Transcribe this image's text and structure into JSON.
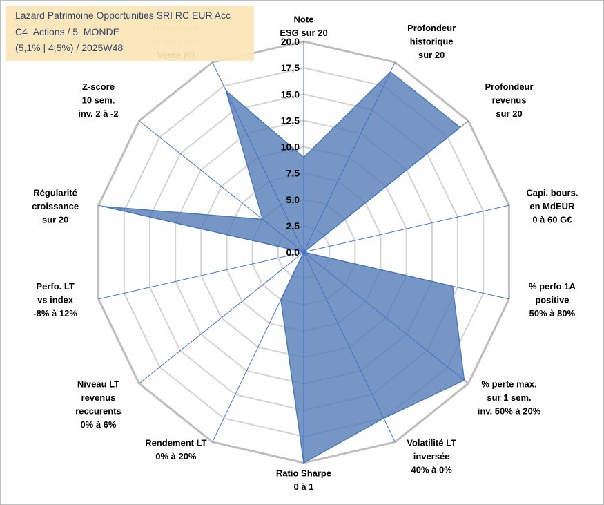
{
  "title": {
    "line1": "Lazard Patrimoine Opportunities SRI RC EUR Acc",
    "line2": "C4_Actions / 5_MONDE",
    "line3": "(5,1% | 4,5%) / 2025W48"
  },
  "colors": {
    "fill": "#4f7ab5",
    "spoke": "#4472c4",
    "ring": "#c8c8c8",
    "title_bg": "#fbe5b6",
    "title_text": "#1f3864",
    "faded_label": "#bfbfbf"
  },
  "chart_data": {
    "type": "radar",
    "ylim": [
      0,
      20
    ],
    "tick_labels": [
      "0,0",
      "2,5",
      "5,0",
      "7,5",
      "10,0",
      "12,5",
      "15,0",
      "17,5",
      "20,0"
    ],
    "categories": [
      [
        "Note",
        "ESG sur 20"
      ],
      [
        "Profondeur",
        "historique",
        "sur 20"
      ],
      [
        "Profondeur",
        "revenus",
        "sur 20"
      ],
      [
        "Capi. bours.",
        "en MdEUR",
        "0 à 60 G€"
      ],
      [
        "% perfo 1A",
        "positive",
        "50% à 80%"
      ],
      [
        "% perte max.",
        "sur 1 sem.",
        "inv. 50% à 20%"
      ],
      [
        "Volatilité LT",
        "inversée",
        "40% à 0%"
      ],
      [
        "Ratio Sharpe",
        "0 à 1"
      ],
      [
        "Rendement LT",
        "0% à 20%"
      ],
      [
        "Niveau LT",
        "revenus",
        "reccurents",
        "0% à 6%"
      ],
      [
        "Perfo. LT",
        "vs index",
        "-8% à 12%"
      ],
      [
        "Régularité",
        "croissance",
        "sur 20"
      ],
      [
        "Z-score",
        "10 sem.",
        "inv. 2 à -2"
      ],
      [
        "Momentum",
        "Achat (20) /",
        "Vente (0)"
      ]
    ],
    "values": [
      9.0,
      19.0,
      19.0,
      0.0,
      14.5,
      19.5,
      17.5,
      20.0,
      5.0,
      0.0,
      0.0,
      19.5,
      5.0,
      17.0
    ]
  }
}
